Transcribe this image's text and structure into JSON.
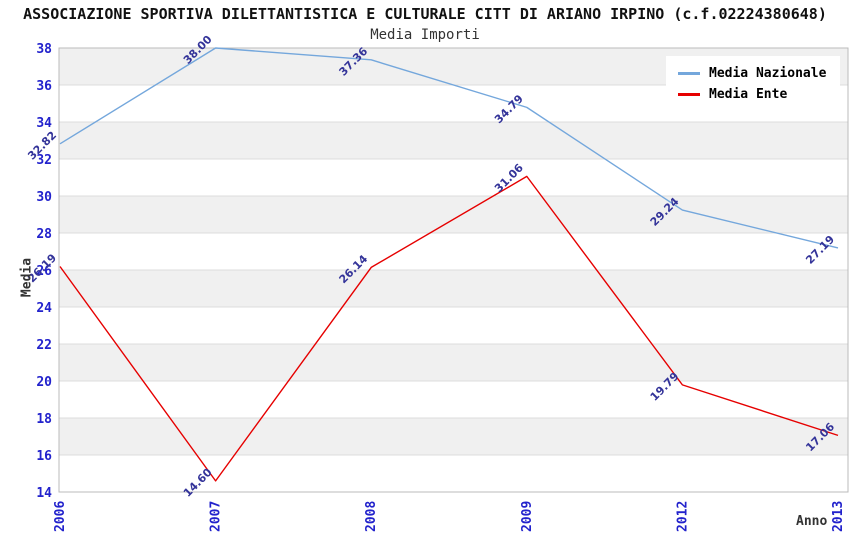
{
  "title": "ASSOCIAZIONE SPORTIVA DILETTANTISTICA E CULTURALE CITT DI ARIANO IRPINO (c.f.02224380648)",
  "chart_data": {
    "type": "line",
    "title": "Media Importi",
    "xlabel": "Anno",
    "ylabel": "Media",
    "categories": [
      "2006",
      "2007",
      "2008",
      "2009",
      "2012",
      "2013"
    ],
    "series": [
      {
        "name": "Media Nazionale",
        "color": "#74A7DC",
        "values": [
          32.82,
          38.0,
          37.36,
          34.79,
          29.24,
          27.19
        ]
      },
      {
        "name": "Media Ente",
        "color": "#E60000",
        "values": [
          26.19,
          14.6,
          26.14,
          31.06,
          19.79,
          17.06
        ]
      }
    ],
    "ylim": [
      14,
      38
    ],
    "ytick_step": 2,
    "grid": true,
    "legend_position": "top-right",
    "colors": {
      "tick_label": "#2222CC",
      "point_label": "#333399",
      "gridline": "#DCDCDC",
      "band_gray": "#F0F0F0",
      "band_white": "#FFFFFF",
      "plot_border": "#BBBBBB"
    },
    "point_label_decimals": 2
  }
}
